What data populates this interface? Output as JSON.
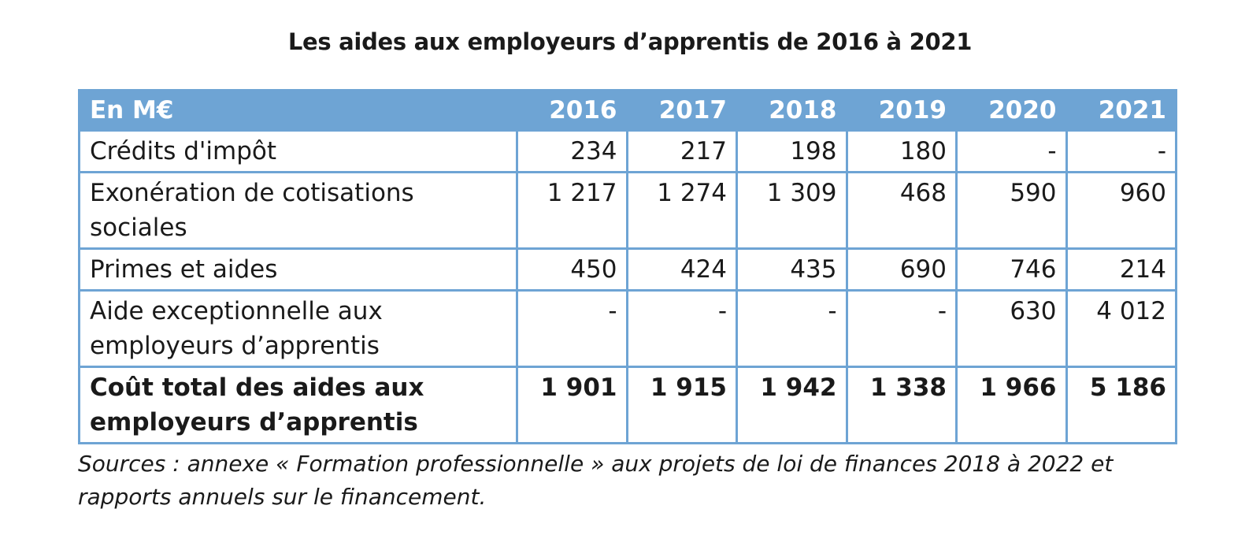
{
  "title": "Les aides aux employeurs d’apprentis de 2016 à 2021",
  "table": {
    "unit_header": "En M€",
    "years": [
      "2016",
      "2017",
      "2018",
      "2019",
      "2020",
      "2021"
    ],
    "rows": [
      {
        "label": "Crédits d'impôt",
        "values": [
          "234",
          "217",
          "198",
          "180",
          "-",
          "-"
        ]
      },
      {
        "label": "Exonération de cotisations sociales",
        "values": [
          "1 217",
          "1 274",
          "1 309",
          "468",
          "590",
          "960"
        ]
      },
      {
        "label": "Primes et aides",
        "values": [
          "450",
          "424",
          "435",
          "690",
          "746",
          "214"
        ]
      },
      {
        "label": "Aide exceptionnelle aux employeurs d’apprentis",
        "values": [
          "-",
          "-",
          "-",
          "-",
          "630",
          "4 012"
        ]
      }
    ],
    "total": {
      "label": "Coût total des aides aux employeurs d’apprentis",
      "values": [
        "1 901",
        "1 915",
        "1 942",
        "1 338",
        "1 966",
        "5 186"
      ]
    }
  },
  "sources": "Sources : annexe « Formation professionnelle » aux projets de loi de finances 2018 à 2022 et rapports annuels sur le financement.",
  "colors": {
    "header_background": "#6ea4d4",
    "border": "#6ea4d4",
    "header_text": "#ffffff"
  }
}
